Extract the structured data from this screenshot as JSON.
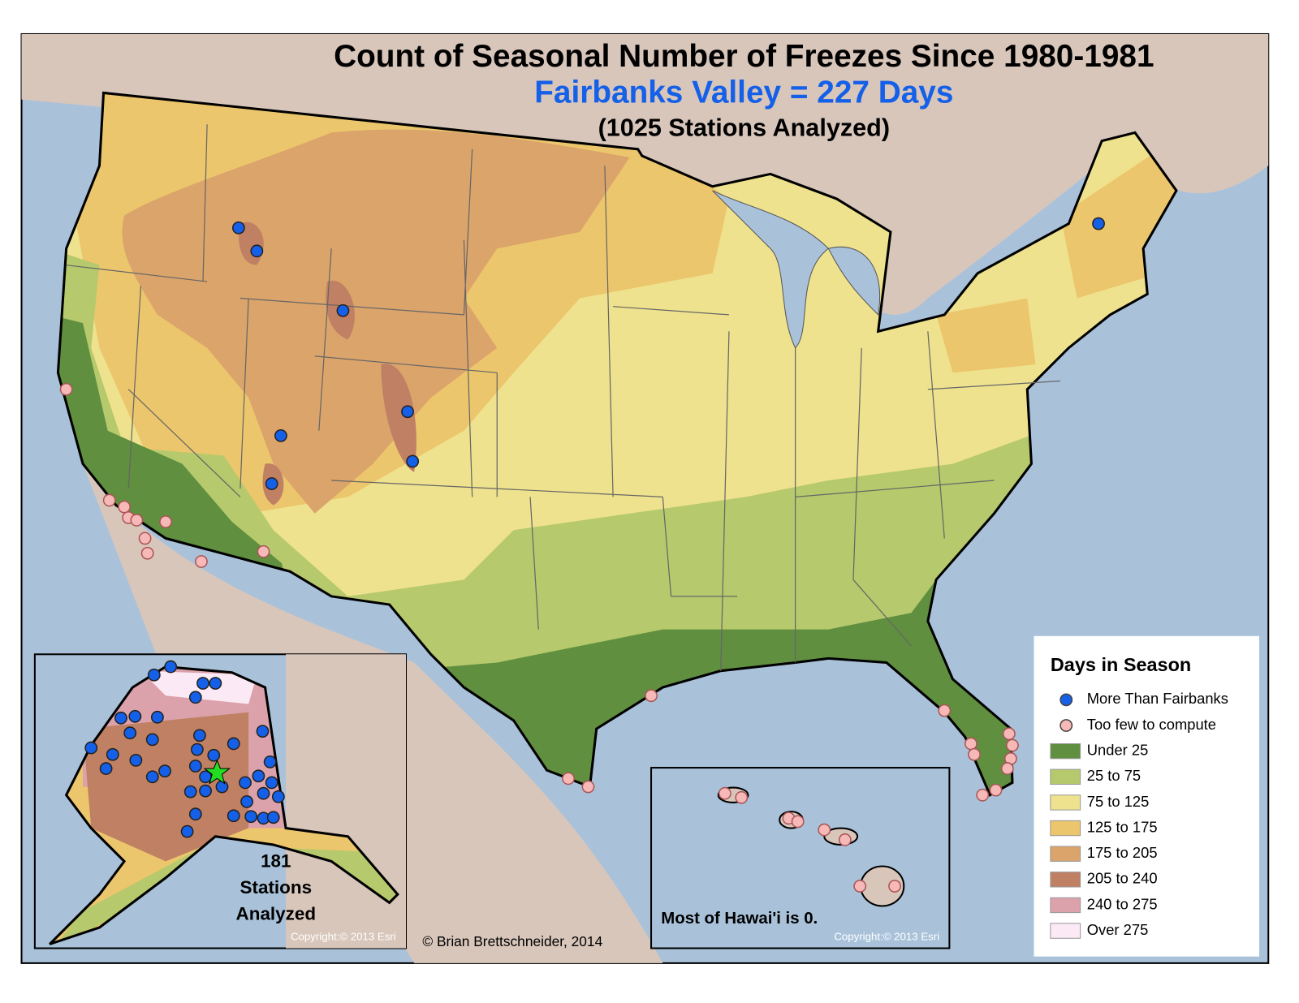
{
  "map": {
    "title": "Count of Seasonal Number of Freezes Since 1980-1981",
    "subtitle": "Fairbanks Valley = 227 Days",
    "stations_note": "(1025 Stations Analyzed)",
    "alaska_inset": {
      "label_lines": [
        "181",
        "Stations",
        "Analyzed"
      ],
      "copyright": "Copyright:© 2013 Esri"
    },
    "hawaii_inset": {
      "note": "Most of Hawai'i is 0.",
      "copyright": "Copyright:© 2013 Esri"
    },
    "credit": "© Brian Brettschneider, 2014",
    "legend": {
      "title": "Days in Season",
      "items": [
        {
          "label": "More Than Fairbanks",
          "color": "#1560e8",
          "symbol": "circle"
        },
        {
          "label": "Too few to compute",
          "color": "#f7b8b8",
          "symbol": "circle"
        },
        {
          "label": "Under 25",
          "color": "#5f8f3f",
          "symbol": "square"
        },
        {
          "label": "25 to 75",
          "color": "#b6c96c",
          "symbol": "square"
        },
        {
          "label": "75 to 125",
          "color": "#efe28e",
          "symbol": "square"
        },
        {
          "label": "125 to 175",
          "color": "#ecc66c",
          "symbol": "square"
        },
        {
          "label": "175 to 205",
          "color": "#dba46b",
          "symbol": "square"
        },
        {
          "label": "205 to 240",
          "color": "#c08063",
          "symbol": "square"
        },
        {
          "label": "240 to 275",
          "color": "#dca2ab",
          "symbol": "square"
        },
        {
          "label": "Over 275",
          "color": "#fbeaf5",
          "symbol": "square"
        }
      ]
    }
  }
}
